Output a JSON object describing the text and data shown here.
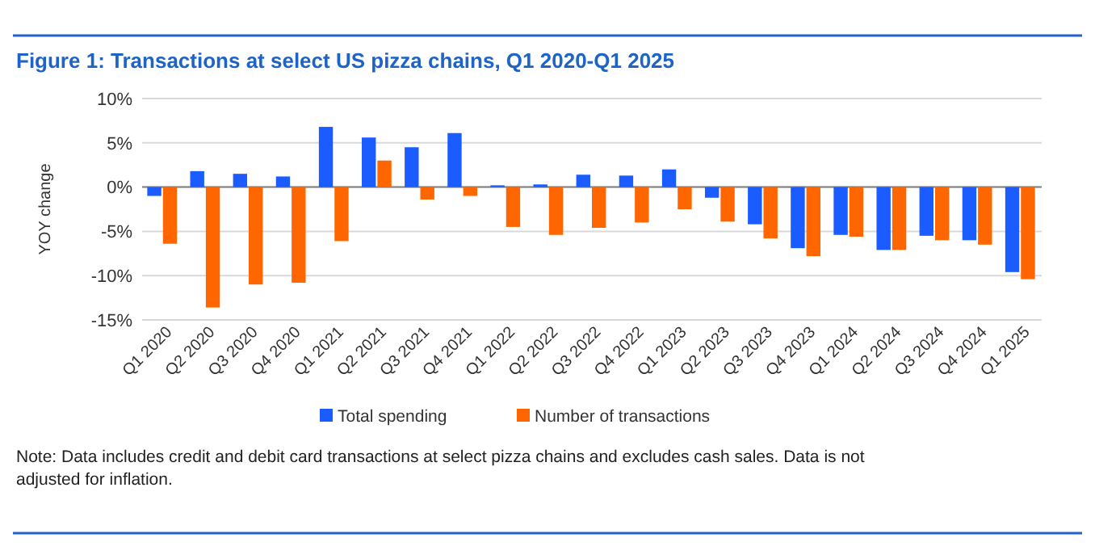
{
  "chart_data": {
    "type": "bar",
    "title": "Figure 1: Transactions at select US pizza chains, Q1 2020-Q1 2025",
    "ylabel": "YOY change",
    "categories": [
      "Q1 2020",
      "Q2 2020",
      "Q3 2020",
      "Q4 2020",
      "Q1 2021",
      "Q2 2021",
      "Q3 2021",
      "Q4 2021",
      "Q1 2022",
      "Q2 2022",
      "Q3 2022",
      "Q4 2022",
      "Q1 2023",
      "Q2 2023",
      "Q3 2023",
      "Q4 2023",
      "Q1 2024",
      "Q2 2024",
      "Q3 2024",
      "Q4 2024",
      "Q1 2025"
    ],
    "series": [
      {
        "name": "Total spending",
        "color": "#1a5cff",
        "values": [
          -1.0,
          1.8,
          1.5,
          1.2,
          6.8,
          5.6,
          4.5,
          6.1,
          0.2,
          0.3,
          1.4,
          1.3,
          2.0,
          -1.2,
          -4.2,
          -6.9,
          -5.4,
          -7.1,
          -5.5,
          -6.0,
          -9.6
        ]
      },
      {
        "name": "Number of transactions",
        "color": "#ff6600",
        "values": [
          -6.4,
          -13.6,
          -11.0,
          -10.8,
          -6.1,
          3.0,
          -1.4,
          -1.0,
          -4.5,
          -5.4,
          -4.6,
          -4.0,
          -2.5,
          -3.9,
          -5.8,
          -7.8,
          -5.6,
          -7.1,
          -6.0,
          -6.5,
          -10.4
        ]
      }
    ],
    "ylim": [
      -15,
      10
    ],
    "yticks": [
      {
        "value": -15,
        "label": "-15%"
      },
      {
        "value": -10,
        "label": "-10%"
      },
      {
        "value": -5,
        "label": "-5%"
      },
      {
        "value": 0,
        "label": "0%"
      },
      {
        "value": 5,
        "label": "5%"
      },
      {
        "value": 10,
        "label": "10%"
      }
    ],
    "grid": "y",
    "legend": "bottom",
    "annotations": [
      "Note: Data includes credit and debit card transactions at select pizza chains and excludes cash sales. Data is not adjusted for inflation."
    ]
  }
}
